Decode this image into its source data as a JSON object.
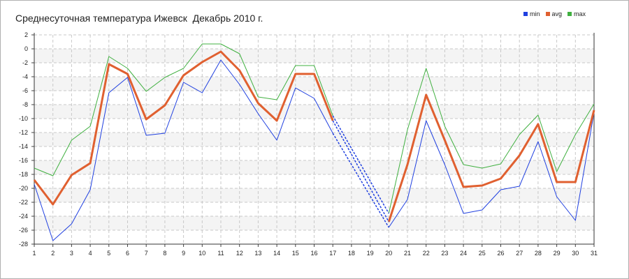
{
  "chart_data": {
    "type": "line",
    "title": "Среднесуточная температура Ижевск  Декабрь 2010 г.",
    "xlabel": "",
    "ylabel": "",
    "categories": [
      "1",
      "2",
      "3",
      "4",
      "5",
      "6",
      "7",
      "8",
      "9",
      "10",
      "11",
      "12",
      "13",
      "14",
      "15",
      "16",
      "17",
      "18",
      "19",
      "20",
      "21",
      "22",
      "23",
      "24",
      "25",
      "26",
      "27",
      "28",
      "29",
      "30",
      "31"
    ],
    "x": [
      1,
      2,
      3,
      4,
      5,
      6,
      7,
      8,
      9,
      10,
      11,
      12,
      13,
      14,
      15,
      16,
      17,
      18,
      19,
      20,
      21,
      22,
      23,
      24,
      25,
      26,
      27,
      28,
      29,
      30,
      31
    ],
    "ylim": [
      -28,
      2
    ],
    "yticks": [
      2,
      0,
      -2,
      -4,
      -6,
      -8,
      -10,
      -12,
      -14,
      -16,
      -18,
      -20,
      -22,
      -24,
      -26,
      -28
    ],
    "grid": true,
    "legend_position": "top-right",
    "missing_days": [
      18,
      19
    ],
    "series": [
      {
        "name": "min",
        "color": "#2040e0",
        "values": [
          -19.4,
          -27.5,
          -25.1,
          -20.2,
          -6.3,
          -4.1,
          -12.4,
          -12.1,
          -4.8,
          -6.3,
          -1.6,
          -5.1,
          -9.3,
          -13.1,
          -5.6,
          -7.1,
          -12.1,
          null,
          null,
          -25.6,
          -21.6,
          -10.3,
          -16.6,
          -23.6,
          -23.1,
          -20.2,
          -19.7,
          -13.3,
          -21.2,
          -24.6,
          -9.1
        ]
      },
      {
        "name": "avg",
        "color": "#e06030",
        "values": [
          -18.8,
          -22.3,
          -18.1,
          -16.4,
          -2.2,
          -3.6,
          -10.1,
          -8.1,
          -3.8,
          -1.9,
          -0.4,
          -3.1,
          -7.8,
          -10.3,
          -3.6,
          -3.6,
          -10.3,
          null,
          null,
          -24.8,
          -16.6,
          -6.6,
          -13.1,
          -19.8,
          -19.6,
          -18.6,
          -15.3,
          -10.8,
          -19.1,
          -19.1,
          -8.8
        ]
      },
      {
        "name": "max",
        "color": "#40b040",
        "values": [
          -17.1,
          -18.2,
          -13.1,
          -11.1,
          -1.1,
          -2.8,
          -6.1,
          -4.1,
          -2.8,
          0.7,
          0.7,
          -0.7,
          -6.9,
          -7.3,
          -2.4,
          -2.4,
          -9.6,
          null,
          null,
          -23.6,
          -11.6,
          -2.8,
          -11.1,
          -16.6,
          -17.1,
          -16.5,
          -12.3,
          -9.5,
          -17.6,
          -12.3,
          -7.9
        ]
      }
    ]
  }
}
